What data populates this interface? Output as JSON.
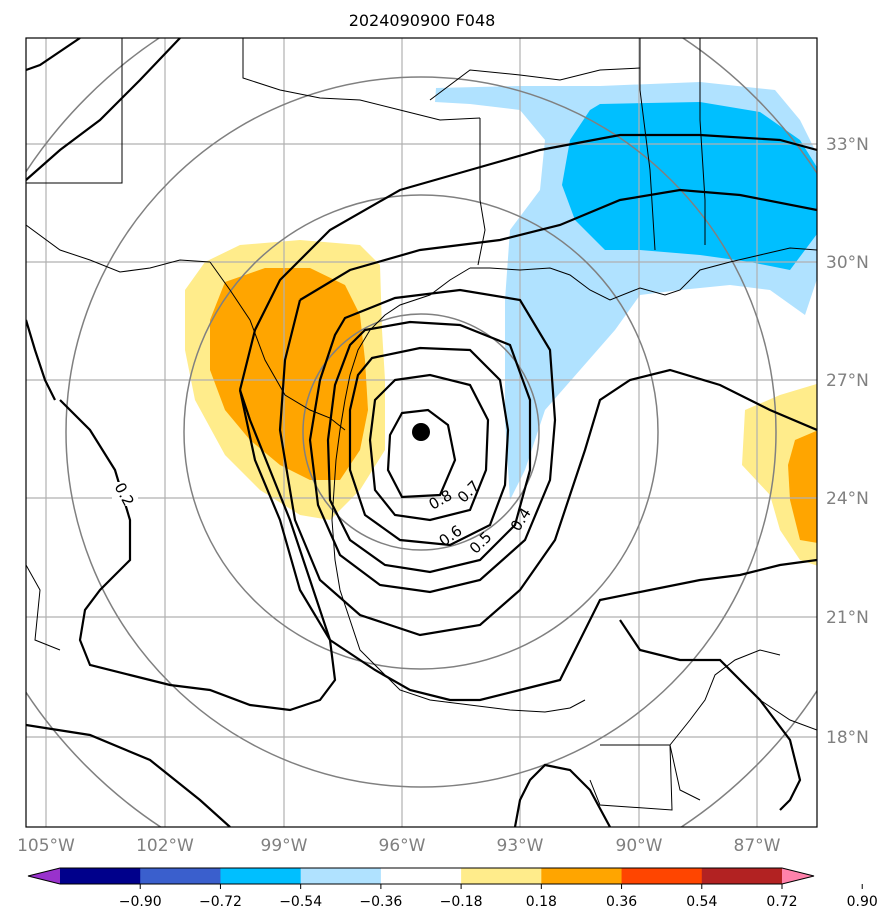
{
  "title": "2024090900 F048",
  "lon_labels": [
    "105°W",
    "102°W",
    "99°W",
    "96°W",
    "93°W",
    "90°W",
    "87°W"
  ],
  "lat_labels": [
    "33°N",
    "30°N",
    "27°N",
    "24°N",
    "21°N",
    "18°N"
  ],
  "contour_labels": [
    "0.2",
    "0.4",
    "0.5",
    "0.6",
    "0.7",
    "0.8"
  ],
  "colorbar": {
    "tick_labels": [
      "−0.90",
      "−0.72",
      "−0.54",
      "−0.36",
      "−0.18",
      "0.18",
      "0.36",
      "0.54",
      "0.72",
      "0.90"
    ],
    "colors": [
      "#9932cc",
      "#00008b",
      "#3a5fcd",
      "#00bfff",
      "#b0e2ff",
      "#ffffff",
      "#ffec8b",
      "#ffa500",
      "#ff4500",
      "#b22222",
      "#ff82ab"
    ]
  },
  "shading_colors": {
    "light_blue": "#b0e2ff",
    "deep_sky_blue": "#00bfff",
    "light_yellow": "#ffec8b",
    "orange": "#ffa500"
  },
  "storm_center": {
    "lon": -95.6,
    "lat": 25.7
  }
}
